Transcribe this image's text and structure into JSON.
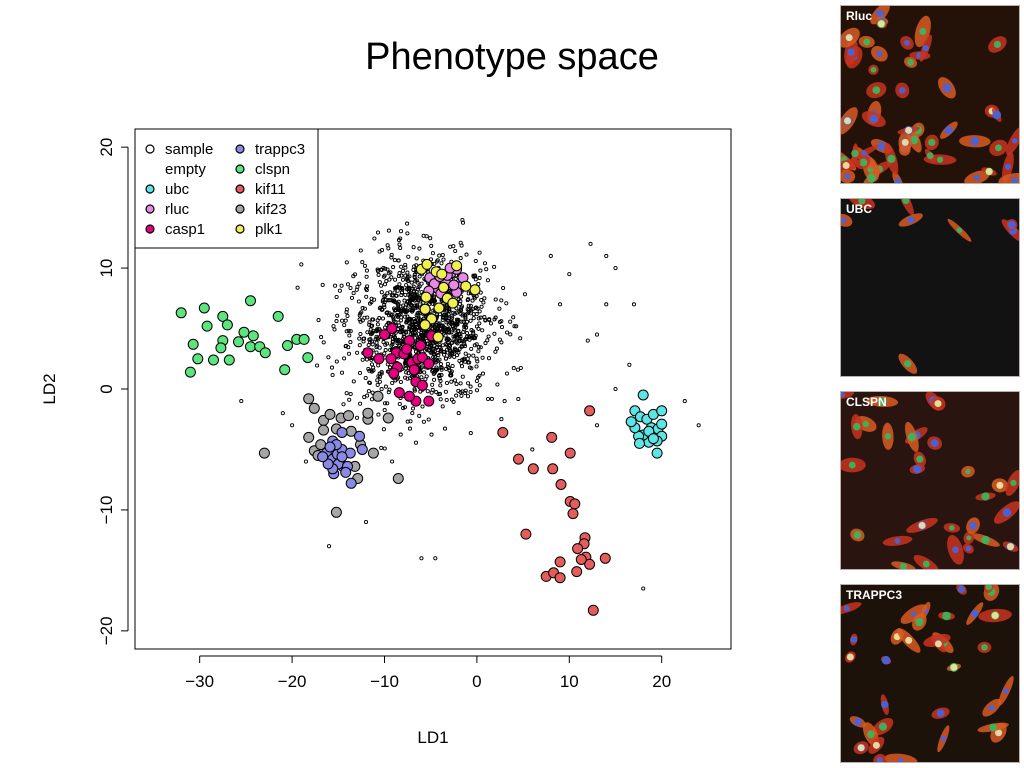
{
  "title": "Phenotype space",
  "chart_data": {
    "type": "scatter",
    "title": "Phenotype space",
    "xlabel": "LD1",
    "ylabel": "LD2",
    "xlim": [
      -37,
      27.5
    ],
    "ylim": [
      -21.5,
      21.5
    ],
    "xticks": [
      -30,
      -20,
      -10,
      0,
      10,
      20
    ],
    "yticks": [
      -20,
      -10,
      0,
      10,
      20
    ],
    "xtick_labels": [
      "−30",
      "−20",
      "−10",
      "0",
      "10",
      "20"
    ],
    "ytick_labels": [
      "−20",
      "−10",
      "0",
      "10",
      "20"
    ],
    "legend": {
      "placement": "top-left",
      "entries": [
        {
          "label": "sample",
          "fill": "none",
          "stroke": "#000000"
        },
        {
          "label": "empty",
          "fill": "none",
          "stroke": "none"
        },
        {
          "label": "ubc",
          "fill": "#5ce5e5",
          "stroke": "#000000"
        },
        {
          "label": "rluc",
          "fill": "#e58ae5",
          "stroke": "#000000"
        },
        {
          "label": "casp1",
          "fill": "#e5007f",
          "stroke": "#000000"
        },
        {
          "label": "trappc3",
          "fill": "#8a8ae5",
          "stroke": "#000000"
        },
        {
          "label": "clspn",
          "fill": "#5ce57f",
          "stroke": "#000000"
        },
        {
          "label": "kif11",
          "fill": "#e55c5c",
          "stroke": "#000000"
        },
        {
          "label": "kif23",
          "fill": "#a6a6a6",
          "stroke": "#000000"
        },
        {
          "label": "plk1",
          "fill": "#f0f050",
          "stroke": "#000000"
        }
      ]
    },
    "sample_cloud": {
      "center": [
        -6,
        5
      ],
      "spread": [
        7,
        4.5
      ],
      "count": 1400,
      "outliers": [
        [
          -19,
          10.3
        ],
        [
          -25.5,
          -1
        ],
        [
          -21,
          -2
        ],
        [
          -18.5,
          -6
        ],
        [
          -20,
          -3
        ],
        [
          -16,
          -13
        ],
        [
          -12,
          -11
        ],
        [
          -6,
          -14
        ],
        [
          -4.5,
          -14
        ],
        [
          8,
          11
        ],
        [
          10,
          9.5
        ],
        [
          14,
          11
        ],
        [
          15,
          10
        ],
        [
          17,
          7
        ],
        [
          14,
          7
        ],
        [
          13,
          4.5
        ],
        [
          12.3,
          12
        ],
        [
          16.5,
          2
        ],
        [
          22.5,
          -1
        ],
        [
          24,
          -3
        ],
        [
          18,
          -16.5
        ],
        [
          15,
          0
        ],
        [
          13,
          -3
        ],
        [
          12,
          4
        ],
        [
          9,
          7
        ],
        [
          3,
          -1
        ],
        [
          6,
          -5
        ]
      ]
    },
    "series": [
      {
        "name": "clspn",
        "color": "#5ce57f",
        "points": [
          [
            -32,
            6.3
          ],
          [
            -29.5,
            6.7
          ],
          [
            -30.7,
            3.7
          ],
          [
            -30.2,
            2.5
          ],
          [
            -29.2,
            5.2
          ],
          [
            -27.5,
            6
          ],
          [
            -27.5,
            4
          ],
          [
            -27,
            5.3
          ],
          [
            -28.5,
            2.4
          ],
          [
            -27.7,
            3.4
          ],
          [
            -26.8,
            2.4
          ],
          [
            -25.8,
            3.9
          ],
          [
            -25.2,
            4.7
          ],
          [
            -24.5,
            7.3
          ],
          [
            -24.2,
            4.4
          ],
          [
            -24.5,
            3.5
          ],
          [
            -23.5,
            3.5
          ],
          [
            -22.9,
            3
          ],
          [
            -21.5,
            6
          ],
          [
            -20.5,
            3.6
          ],
          [
            -20.8,
            1.6
          ],
          [
            -19.5,
            4.1
          ],
          [
            -18.7,
            4.1
          ],
          [
            -18.3,
            2.6
          ],
          [
            -31,
            1.4
          ]
        ]
      },
      {
        "name": "kif23",
        "color": "#a6a6a6",
        "points": [
          [
            -23,
            -5.3
          ],
          [
            -18.2,
            -0.8
          ],
          [
            -17.6,
            -1.6
          ],
          [
            -18.2,
            -4
          ],
          [
            -17.6,
            -5.1
          ],
          [
            -17.2,
            -5.5
          ],
          [
            -16.9,
            -4.6
          ],
          [
            -16.6,
            -2.6
          ],
          [
            -15.9,
            -2.1
          ],
          [
            -15.2,
            -3.3
          ],
          [
            -14.7,
            -2.4
          ],
          [
            -13.9,
            -2.2
          ],
          [
            -13.6,
            -3.5
          ],
          [
            -12.6,
            -4.6
          ],
          [
            -13.2,
            -6.4
          ],
          [
            -12.9,
            -7.4
          ],
          [
            -11.8,
            -2.5
          ],
          [
            -11.2,
            -5.3
          ],
          [
            -11.8,
            -2
          ],
          [
            -9.6,
            -2.4
          ],
          [
            -10.7,
            -0.6
          ],
          [
            -8.5,
            -7.4
          ],
          [
            -15.2,
            -10.2
          ],
          [
            -16.6,
            -3.4
          ]
        ]
      },
      {
        "name": "trappc3",
        "color": "#8a8ae5",
        "points": [
          [
            -16.3,
            -5.3
          ],
          [
            -15.6,
            -5.8
          ],
          [
            -15.6,
            -4.3
          ],
          [
            -15.1,
            -5.4
          ],
          [
            -14.6,
            -5
          ],
          [
            -14.5,
            -6.4
          ],
          [
            -15,
            -6.2
          ],
          [
            -15.5,
            -7
          ],
          [
            -14,
            -6.4
          ],
          [
            -14.6,
            -3.6
          ],
          [
            -14.2,
            -6.9
          ],
          [
            -13.7,
            -5.3
          ],
          [
            -13.6,
            -7.8
          ],
          [
            -15.6,
            -6.6
          ],
          [
            -16.1,
            -6.2
          ],
          [
            -16.7,
            -5.6
          ],
          [
            -12.7,
            -3.9
          ],
          [
            -12.4,
            -5
          ],
          [
            -15.2,
            -4.6
          ],
          [
            -14.6,
            -5.6
          ],
          [
            -15.9,
            -4.8
          ]
        ]
      },
      {
        "name": "casp1",
        "color": "#e5007f",
        "points": [
          [
            -11.8,
            3
          ],
          [
            -10.6,
            2.5
          ],
          [
            -10,
            4.5
          ],
          [
            -9.2,
            5
          ],
          [
            -8.7,
            3
          ],
          [
            -7.9,
            2.9
          ],
          [
            -7.3,
            4
          ],
          [
            -8.6,
            1.8
          ],
          [
            -9,
            1.3
          ],
          [
            -9.3,
            2.5
          ],
          [
            -7,
            2.2
          ],
          [
            -6.4,
            2.5
          ],
          [
            -5.9,
            2.6
          ],
          [
            -5.2,
            2.1
          ],
          [
            -6.6,
            0.6
          ],
          [
            -5.9,
            0.3
          ],
          [
            -5.2,
            -1
          ],
          [
            -6.6,
            -1
          ],
          [
            -7.3,
            -0.6
          ],
          [
            -6.8,
            1.6
          ],
          [
            -4.9,
            4.4
          ],
          [
            -6.1,
            3.6
          ],
          [
            -7.6,
            3.3
          ],
          [
            -8.4,
            -0.3
          ]
        ]
      },
      {
        "name": "rluc",
        "color": "#e58ae5",
        "points": [
          [
            -5.1,
            9.2
          ],
          [
            -4.2,
            8.3
          ],
          [
            -3.4,
            8.8
          ],
          [
            -2.8,
            9.6
          ],
          [
            -2.2,
            9.9
          ],
          [
            -1.6,
            8.5
          ],
          [
            -2.2,
            8
          ],
          [
            -3.4,
            7.6
          ],
          [
            -4.6,
            8.7
          ],
          [
            -3.2,
            9.4
          ],
          [
            -2.5,
            8.6
          ],
          [
            -2.9,
            10
          ],
          [
            -5.2,
            8.1
          ],
          [
            -1.5,
            9.2
          ],
          [
            -4,
            9.3
          ],
          [
            -3.9,
            7.9
          ]
        ]
      },
      {
        "name": "plk1",
        "color": "#f0f050",
        "points": [
          [
            -6,
            9.9
          ],
          [
            -4.4,
            9.7
          ],
          [
            -3.8,
            9.5
          ],
          [
            -5.5,
            7.6
          ],
          [
            -5.6,
            6.6
          ],
          [
            -4.9,
            5.8
          ],
          [
            -4.1,
            6.7
          ],
          [
            -3.2,
            7.5
          ],
          [
            -2.6,
            7.1
          ],
          [
            -4.2,
            4.3
          ],
          [
            -5.6,
            5.3
          ],
          [
            -0.2,
            8.2
          ],
          [
            -1.2,
            8.5
          ],
          [
            -2.2,
            10.2
          ],
          [
            -3.6,
            8.4
          ],
          [
            -5.4,
            10.3
          ]
        ]
      },
      {
        "name": "ubc",
        "color": "#5ce5e5",
        "points": [
          [
            18,
            -0.5
          ],
          [
            17.1,
            -1.8
          ],
          [
            17.7,
            -2.3
          ],
          [
            18.4,
            -2.5
          ],
          [
            19.1,
            -2.1
          ],
          [
            18.9,
            -3.2
          ],
          [
            19.6,
            -3.3
          ],
          [
            20,
            -2.9
          ],
          [
            20,
            -3.9
          ],
          [
            19.5,
            -4.3
          ],
          [
            19.5,
            -5.3
          ],
          [
            18.6,
            -4.4
          ],
          [
            18,
            -3.8
          ],
          [
            17.5,
            -3.9
          ],
          [
            17.1,
            -3.2
          ],
          [
            16.7,
            -2.7
          ],
          [
            18.6,
            -3.5
          ],
          [
            20,
            -1.8
          ],
          [
            19.1,
            -4.1
          ],
          [
            17.6,
            -4.5
          ]
        ]
      },
      {
        "name": "kif11",
        "color": "#e55c5c",
        "points": [
          [
            2.8,
            -3.6
          ],
          [
            4.5,
            -5.8
          ],
          [
            6.1,
            -6.6
          ],
          [
            8.1,
            -4
          ],
          [
            8.2,
            -6.6
          ],
          [
            9.1,
            -7.9
          ],
          [
            10.1,
            -5.3
          ],
          [
            12.2,
            -1.8
          ],
          [
            10.1,
            -9.3
          ],
          [
            10.6,
            -9.5
          ],
          [
            10.4,
            -10.3
          ],
          [
            5.3,
            -12
          ],
          [
            11.7,
            -12.3
          ],
          [
            11.6,
            -12.8
          ],
          [
            10.9,
            -13.2
          ],
          [
            11.8,
            -13.9
          ],
          [
            12.2,
            -14.5
          ],
          [
            13.9,
            -14
          ],
          [
            11.3,
            -14.1
          ],
          [
            9,
            -14.3
          ],
          [
            7.5,
            -15.5
          ],
          [
            8.3,
            -15.2
          ],
          [
            9,
            -15.6
          ],
          [
            10.8,
            -15.1
          ],
          [
            12.6,
            -18.3
          ]
        ]
      }
    ]
  },
  "panels": [
    {
      "label": "Rluc",
      "density": 52,
      "bg": "#241208"
    },
    {
      "label": "UBC",
      "density": 8,
      "bg": "#121212"
    },
    {
      "label": "CLSPN",
      "density": 30,
      "bg": "#2a1410"
    },
    {
      "label": "TRAPPC3",
      "density": 34,
      "bg": "#1c120a"
    }
  ]
}
